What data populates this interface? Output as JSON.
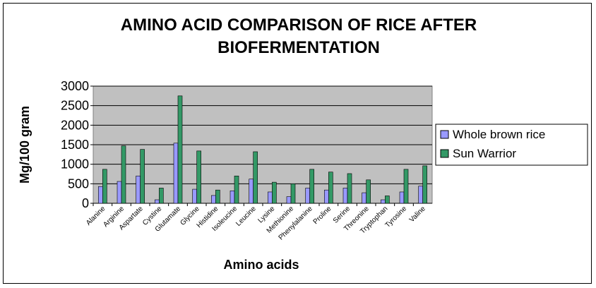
{
  "chart_data": {
    "type": "bar",
    "title_line1": "AMINO ACID COMPARISON OF RICE AFTER",
    "title_line2": "BIOFERMENTATION",
    "xlabel": "Amino acids",
    "ylabel": "Mg/100 gram",
    "ylim": [
      0,
      3000
    ],
    "yticks": [
      0,
      500,
      1000,
      1500,
      2000,
      2500,
      3000
    ],
    "grid": true,
    "legend_position": "right",
    "plot_background": "#C0C0C0",
    "categories": [
      "Alanine",
      "Arginine",
      "Aspartate",
      "Cystine",
      "Glutamate",
      "Glycine",
      "Histidine",
      "Isoleucine",
      "Leucine",
      "Lysine",
      "Methionine",
      "Phenylalanine",
      "Proline",
      "Serine",
      "Threonine",
      "Tryptophan",
      "Tyrosine",
      "Valine"
    ],
    "series": [
      {
        "name": "Whole brown rice",
        "color": "#9999FF",
        "values": [
          430,
          560,
          700,
          90,
          1540,
          360,
          200,
          320,
          620,
          290,
          170,
          390,
          340,
          390,
          270,
          90,
          290,
          440
        ]
      },
      {
        "name": "Sun Warrior",
        "color": "#339966",
        "values": [
          870,
          1470,
          1380,
          390,
          2750,
          1340,
          340,
          700,
          1320,
          540,
          500,
          870,
          800,
          760,
          600,
          190,
          870,
          960
        ]
      }
    ]
  }
}
